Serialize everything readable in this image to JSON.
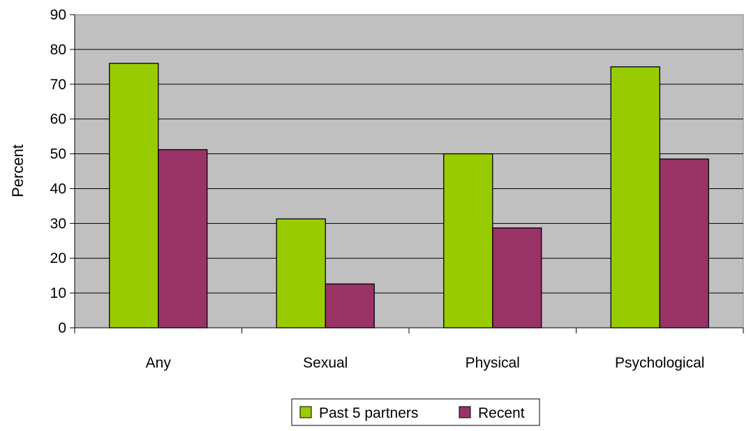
{
  "chart_data": {
    "type": "bar",
    "title": "",
    "xlabel": "",
    "ylabel": "Percent",
    "categories": [
      "Any",
      "Sexual",
      "Physical",
      "Psychological"
    ],
    "series": [
      {
        "name": "Past 5 partners",
        "values": [
          76,
          31.3,
          50,
          75
        ],
        "color": "#99cc00"
      },
      {
        "name": "Recent",
        "values": [
          51.2,
          12.6,
          28.7,
          48.5
        ],
        "color": "#993366"
      }
    ],
    "ylim": [
      0,
      90
    ],
    "yticks": [
      0,
      10,
      20,
      30,
      40,
      50,
      60,
      70,
      80,
      90
    ],
    "grid": true,
    "legend_position": "bottom",
    "plot_background": "#c0c0c0"
  }
}
